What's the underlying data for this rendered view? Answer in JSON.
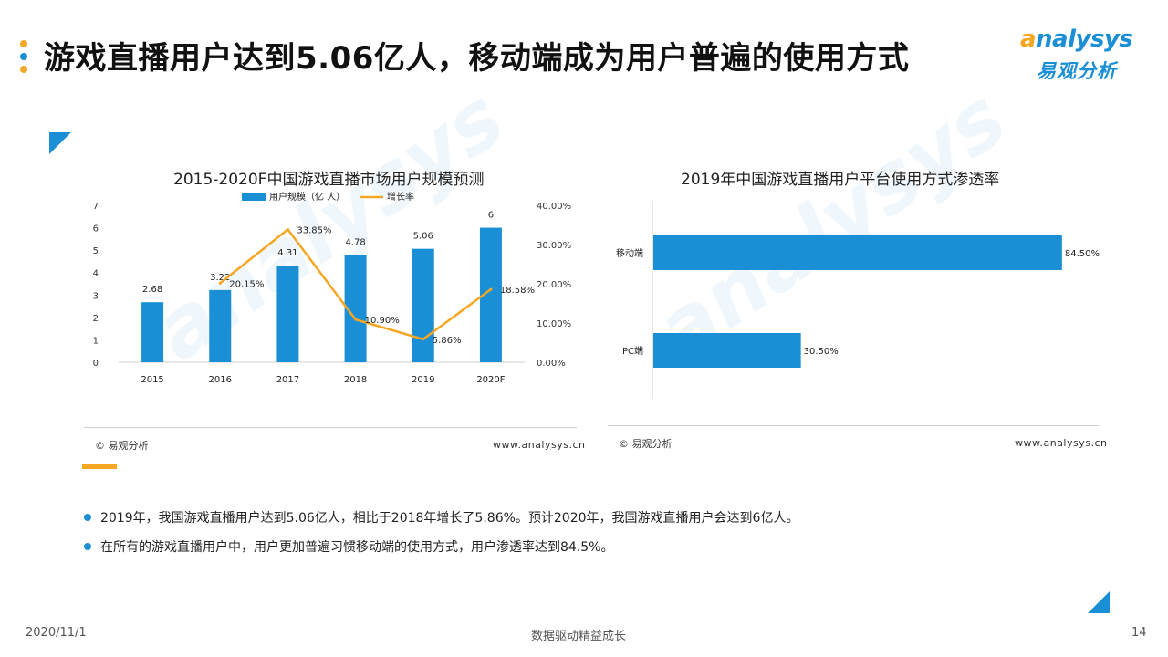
{
  "header": {
    "title": "游戏直播用户达到5.06亿人，移动端成为用户普遍的使用方式",
    "dot_colors": [
      "#f5a623",
      "#1a8fd6",
      "#f5a623"
    ]
  },
  "logo": {
    "brand_en": "nalysys",
    "brand_en_initial": "a",
    "brand_cn": "易观分析"
  },
  "colors": {
    "accent_blue": "#1a8fd6",
    "accent_orange": "#f5a623"
  },
  "left_chart": {
    "source": "© 易观分析",
    "url": "www.analysys.cn",
    "legend": {
      "bar": "用户规模（亿 人）",
      "line": "增长率"
    }
  },
  "right_chart": {
    "source": "© 易观分析",
    "url": "www.analysys.cn"
  },
  "chart_data": [
    {
      "type": "bar",
      "title": "2015-2020F中国游戏直播市场用户规模预测",
      "categories": [
        "2015",
        "2016",
        "2017",
        "2018",
        "2019",
        "2020F"
      ],
      "series": [
        {
          "name": "用户规模（亿 人）",
          "type": "bar",
          "values": [
            2.68,
            3.22,
            4.31,
            4.78,
            5.06,
            6
          ],
          "labels": [
            "2.68",
            "3.22",
            "4.31",
            "4.78",
            "5.06",
            "6"
          ],
          "axis": "left"
        },
        {
          "name": "增长率",
          "type": "line",
          "values": [
            null,
            20.15,
            33.85,
            10.9,
            5.86,
            18.58
          ],
          "labels": [
            "",
            "20.15%",
            "33.85%",
            "10.90%",
            "5.86%",
            "18.58%"
          ],
          "axis": "right"
        }
      ],
      "ylim": [
        0,
        7
      ],
      "yticks": [
        "0",
        "1",
        "2",
        "3",
        "4",
        "5",
        "6",
        "7"
      ],
      "y2lim": [
        0,
        40
      ],
      "y2ticks": [
        "0.00%",
        "10.00%",
        "20.00%",
        "30.00%",
        "40.00%"
      ],
      "legend_position": "top",
      "grid": false
    },
    {
      "type": "bar",
      "orientation": "horizontal",
      "title": "2019年中国游戏直播用户平台使用方式渗透率",
      "categories": [
        "移动端",
        "PC端"
      ],
      "values": [
        84.5,
        30.5
      ],
      "labels": [
        "84.50%",
        "30.50%"
      ],
      "xlim": [
        0,
        100
      ],
      "grid": false
    }
  ],
  "bullets": [
    "2019年，我国游戏直播用户达到5.06亿人，相比于2018年增长了5.86%。预计2020年，我国游戏直播用户会达到6亿人。",
    "在所有的游戏直播用户中，用户更加普遍习惯移动端的使用方式，用户渗透率达到84.5%。"
  ],
  "footer": {
    "date": "2020/11/1",
    "slogan": "数据驱动精益成长",
    "page": "14"
  }
}
